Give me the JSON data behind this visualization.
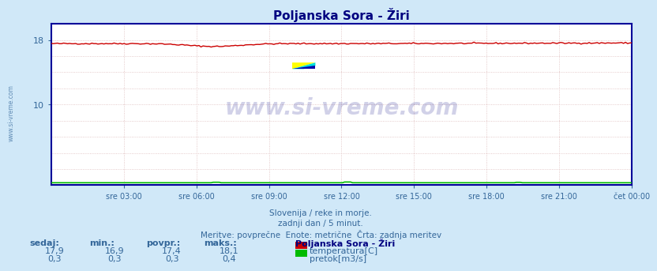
{
  "title": "Poljanska Sora - Žiri",
  "title_color": "#000080",
  "bg_color": "#d0e8f8",
  "plot_bg_color": "#ffffff",
  "spine_color": "#000099",
  "grid_color": "#ddbbbb",
  "tick_color": "#336699",
  "n_points": 288,
  "temp_min": 16.9,
  "temp_max": 18.1,
  "temp_avg": 17.4,
  "temp_current": 17.9,
  "flow_min": 0.3,
  "flow_max": 0.4,
  "flow_avg": 0.3,
  "flow_current": 0.3,
  "ylim_min": 0,
  "ylim_max": 20,
  "ytick_vals": [
    10,
    18
  ],
  "xtick_labels": [
    "sre 03:00",
    "sre 06:00",
    "sre 09:00",
    "sre 12:00",
    "sre 15:00",
    "sre 18:00",
    "sre 21:00",
    "čet 00:00"
  ],
  "temp_color": "#cc0000",
  "flow_color": "#00bb00",
  "watermark_text": "www.si-vreme.com",
  "watermark_color": "#000080",
  "watermark_alpha": 0.18,
  "footer_line1": "Slovenija / reke in morje.",
  "footer_line2": "zadnji dan / 5 minut.",
  "footer_line3": "Meritve: povprečne  Enote: metrične  Črta: zadnja meritev",
  "footer_color": "#336699",
  "label_sedaj": "sedaj:",
  "label_min": "min.:",
  "label_povpr": "povpr.:",
  "label_maks": "maks.:",
  "legend_title": "Poljanska Sora - Žiri",
  "legend_temp": "temperatura[C]",
  "legend_flow": "pretok[m3/s]",
  "sidebar_text": "www.si-vreme.com",
  "sidebar_color": "#336699"
}
